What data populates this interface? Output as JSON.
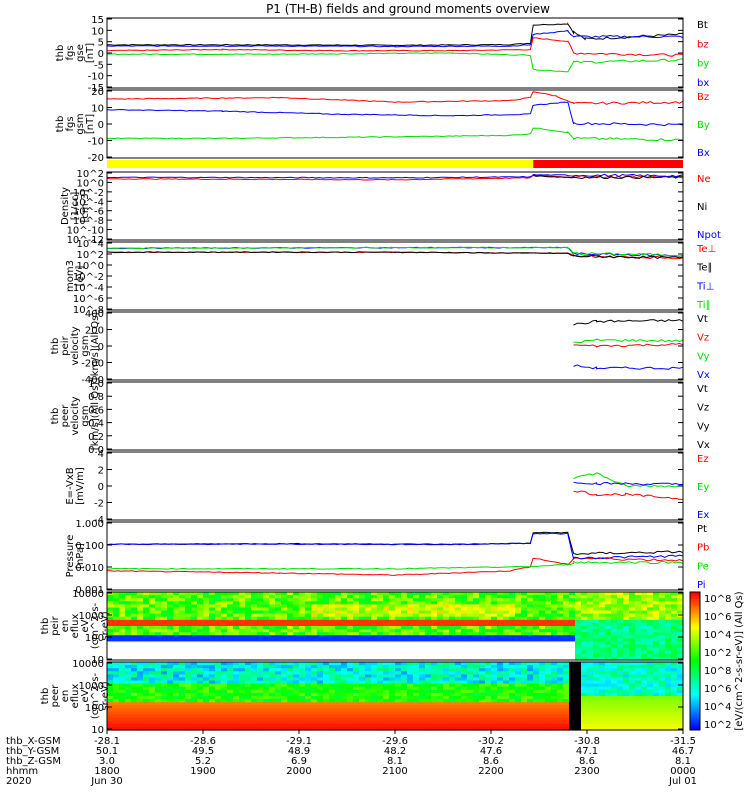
{
  "title": "P1 (TH-B) fields and ground moments overview",
  "colors": {
    "black": "#000000",
    "red": "#ff0000",
    "green": "#00dd00",
    "blue": "#0000ff",
    "yellow": "#ffff00"
  },
  "chart_data": {
    "type": "line",
    "time_axis": {
      "hhmm": [
        "1800",
        "1900",
        "2000",
        "2100",
        "2200",
        "2300",
        "0000"
      ],
      "dates": [
        "2020",
        "Jun 30",
        "Jul 01"
      ],
      "x_gsm": [
        "-28.1",
        "-28.6",
        "-29.1",
        "-29.6",
        "-30.2",
        "-30.8",
        "-31.5"
      ],
      "y_gsm": [
        "50.1",
        "49.5",
        "48.9",
        "48.2",
        "47.6",
        "47.1",
        "46.7"
      ],
      "z_gsm": [
        "3.0",
        "5.2",
        "6.9",
        "8.1",
        "8.6",
        "8.6",
        "8.1"
      ],
      "row_labels": [
        "thb_X-GSM",
        "thb_Y-GSM",
        "thb_Z-GSM",
        "hhmm",
        "2020"
      ]
    },
    "panels": [
      {
        "id": "fgs_gse",
        "ylabel": [
          "thb",
          "fgs",
          "gse",
          "[nT]"
        ],
        "yticks": [
          "15",
          "10",
          "5",
          "0",
          "-5",
          "-10",
          "-15"
        ],
        "ylim": [
          -15,
          15
        ],
        "legend": [
          "Bt",
          "bz",
          "by",
          "bx"
        ],
        "series": [
          {
            "name": "Bt",
            "color": "#000000",
            "points": [
              [
                0,
                3.5
              ],
              [
                0.25,
                3.5
              ],
              [
                0.5,
                3.3
              ],
              [
                0.7,
                3.6
              ],
              [
                0.735,
                4.2
              ],
              [
                0.74,
                12
              ],
              [
                0.8,
                12.5
              ],
              [
                0.81,
                9
              ],
              [
                0.83,
                6
              ],
              [
                1,
                8
              ]
            ]
          },
          {
            "name": "bz",
            "color": "#ff0000",
            "points": [
              [
                0,
                1
              ],
              [
                0.2,
                1.5
              ],
              [
                0.4,
                1
              ],
              [
                0.6,
                1
              ],
              [
                0.735,
                1.5
              ],
              [
                0.74,
                6.5
              ],
              [
                0.8,
                5
              ],
              [
                0.81,
                0
              ],
              [
                1,
                -1
              ]
            ]
          },
          {
            "name": "by",
            "color": "#00dd00",
            "points": [
              [
                0,
                -0.5
              ],
              [
                0.3,
                -0.5
              ],
              [
                0.6,
                0
              ],
              [
                0.735,
                -1
              ],
              [
                0.74,
                -7
              ],
              [
                0.8,
                -8
              ],
              [
                0.81,
                -4
              ],
              [
                1,
                -3
              ]
            ]
          },
          {
            "name": "bx",
            "color": "#0000ff",
            "points": [
              [
                0,
                3
              ],
              [
                0.3,
                3
              ],
              [
                0.5,
                2.8
              ],
              [
                0.7,
                3
              ],
              [
                0.735,
                3.5
              ],
              [
                0.74,
                8
              ],
              [
                0.8,
                9.5
              ],
              [
                0.81,
                7
              ],
              [
                1,
                7
              ]
            ]
          }
        ]
      },
      {
        "id": "fgs_gsm",
        "ylabel": [
          "thb",
          "fgs",
          "gsm",
          "[nT]"
        ],
        "yticks": [
          "20",
          "10",
          "0",
          "-10",
          "-20"
        ],
        "ylim": [
          -25,
          20
        ],
        "legend": [
          "Bz",
          "By",
          "Bx"
        ],
        "series": [
          {
            "name": "Bz",
            "color": "#ff0000",
            "points": [
              [
                0,
                14
              ],
              [
                0.3,
                15
              ],
              [
                0.5,
                12
              ],
              [
                0.7,
                13
              ],
              [
                0.735,
                15
              ],
              [
                0.74,
                19
              ],
              [
                0.78,
                16
              ],
              [
                0.81,
                11
              ],
              [
                1,
                12
              ]
            ]
          },
          {
            "name": "By",
            "color": "#00dd00",
            "points": [
              [
                0,
                -12
              ],
              [
                0.2,
                -12
              ],
              [
                0.5,
                -11
              ],
              [
                0.7,
                -10
              ],
              [
                0.735,
                -9
              ],
              [
                0.74,
                -5
              ],
              [
                0.8,
                -8
              ],
              [
                0.81,
                -12
              ],
              [
                1,
                -13
              ]
            ]
          },
          {
            "name": "Bx",
            "color": "#0000ff",
            "points": [
              [
                0,
                7
              ],
              [
                0.2,
                6
              ],
              [
                0.4,
                4
              ],
              [
                0.6,
                3
              ],
              [
                0.735,
                4
              ],
              [
                0.74,
                10
              ],
              [
                0.8,
                12
              ],
              [
                0.81,
                -2
              ],
              [
                1,
                -3
              ]
            ]
          }
        ]
      },
      {
        "id": "density",
        "ylabel": [
          "Density",
          "[1/cc]",
          "[cm-3]"
        ],
        "yticks": [
          "10^2",
          "10^0",
          "10^-2",
          "10^-4",
          "10^-6",
          "10^-8",
          "10^-10",
          "10^-12"
        ],
        "ylim": [
          -12,
          2
        ],
        "log": true,
        "legend": [
          "Ne",
          "Ni",
          "Npot"
        ],
        "series": [
          {
            "name": "Ne",
            "color": "#ff0000",
            "points": [
              [
                0,
                0.6
              ],
              [
                0.5,
                0.4
              ],
              [
                0.735,
                0.8
              ],
              [
                0.74,
                1.3
              ],
              [
                0.8,
                1.0
              ],
              [
                1,
                1.0
              ]
            ]
          },
          {
            "name": "Ni",
            "color": "#000000",
            "points": [
              [
                0.74,
                1.2
              ],
              [
                0.8,
                0.9
              ],
              [
                1,
                0.9
              ]
            ]
          },
          {
            "name": "Npot",
            "color": "#0000ff",
            "points": [
              [
                0,
                0.9
              ],
              [
                0.5,
                0.8
              ],
              [
                0.735,
                1.0
              ],
              [
                0.74,
                1.4
              ],
              [
                1,
                1.2
              ]
            ]
          }
        ]
      },
      {
        "id": "temp",
        "ylabel": [
          "mom3",
          "[eV]"
        ],
        "yticks": [
          "10^4",
          "10^2",
          "10^0",
          "10^-2",
          "10^-4",
          "10^-6",
          "10^-8"
        ],
        "ylim": [
          -8,
          4
        ],
        "log": true,
        "legend": [
          "Te⊥",
          "Te∥",
          "Ti⊥",
          "Ti∥"
        ],
        "series": [
          {
            "name": "Te⊥",
            "color": "#ff0000",
            "points": [
              [
                0,
                2.2
              ],
              [
                0.5,
                2.2
              ],
              [
                0.8,
                2.0
              ],
              [
                0.81,
                1.5
              ],
              [
                1,
                1.2
              ]
            ]
          },
          {
            "name": "Te∥",
            "color": "#000000",
            "points": [
              [
                0,
                2.2
              ],
              [
                0.5,
                2.2
              ],
              [
                0.8,
                2.0
              ],
              [
                0.81,
                1.5
              ],
              [
                1,
                1.2
              ]
            ]
          },
          {
            "name": "Ti⊥",
            "color": "#0000ff",
            "points": [
              [
                0,
                2.9
              ],
              [
                0.5,
                3.0
              ],
              [
                0.8,
                3.0
              ],
              [
                0.81,
                1.9
              ],
              [
                1,
                1.6
              ]
            ]
          },
          {
            "name": "Ti∥",
            "color": "#00dd00",
            "points": [
              [
                0,
                2.9
              ],
              [
                0.5,
                3.0
              ],
              [
                0.8,
                3.0
              ],
              [
                0.81,
                2.0
              ],
              [
                1,
                1.7
              ]
            ]
          }
        ]
      },
      {
        "id": "vel_gsm",
        "ylabel": [
          "thb",
          "peir",
          "velocity",
          "gsm",
          "[km/s](All Qs)"
        ],
        "yticks": [
          "400",
          "200",
          "0",
          "-200",
          "-400"
        ],
        "ylim": [
          -400,
          400
        ],
        "legend": [
          "Vt",
          "Vz",
          "Vy",
          "Vx"
        ],
        "series": [
          {
            "name": "Vt",
            "color": "#000000",
            "points": [
              [
                0.81,
                250
              ],
              [
                0.85,
                290
              ],
              [
                1,
                300
              ]
            ]
          },
          {
            "name": "Vz",
            "color": "#ff0000",
            "points": [
              [
                0.81,
                10
              ],
              [
                0.85,
                0
              ],
              [
                1,
                20
              ]
            ]
          },
          {
            "name": "Vy",
            "color": "#00dd00",
            "points": [
              [
                0.81,
                40
              ],
              [
                0.85,
                70
              ],
              [
                1,
                60
              ]
            ]
          },
          {
            "name": "Vx",
            "color": "#0000ff",
            "points": [
              [
                0.81,
                -230
              ],
              [
                0.85,
                -260
              ],
              [
                1,
                -260
              ]
            ]
          }
        ]
      },
      {
        "id": "vel_gsm_e",
        "ylabel": [
          "thb",
          "peer",
          "velocity",
          "gsm",
          "[km/s](All Qs)"
        ],
        "yticks": [
          "1.0",
          "0.8",
          "0.6",
          "0.4",
          "0.2",
          "0.0"
        ],
        "ylim": [
          0,
          1
        ],
        "legend": [
          "Vt",
          "Vz",
          "Vy",
          "Vx"
        ],
        "series": []
      },
      {
        "id": "efield",
        "ylabel": [
          "E=-VxB",
          "[mV/m]"
        ],
        "yticks": [
          "4",
          "2",
          "0",
          "-2",
          "-4"
        ],
        "ylim": [
          -4,
          4
        ],
        "legend": [
          "Ez",
          "Ey",
          "Ex"
        ],
        "series": [
          {
            "name": "Ez",
            "color": "#ff0000",
            "points": [
              [
                0.81,
                -0.5
              ],
              [
                0.85,
                -1
              ],
              [
                0.9,
                -1
              ],
              [
                1,
                -1.5
              ]
            ]
          },
          {
            "name": "Ey",
            "color": "#00dd00",
            "points": [
              [
                0.81,
                1
              ],
              [
                0.85,
                1.5
              ],
              [
                0.9,
                0
              ],
              [
                1,
                0
              ]
            ]
          },
          {
            "name": "Ex",
            "color": "#0000ff",
            "points": [
              [
                0.81,
                0.5
              ],
              [
                0.85,
                0.3
              ],
              [
                1,
                0.2
              ]
            ]
          }
        ]
      },
      {
        "id": "pressure",
        "ylabel": [
          "Pressure",
          "[nPa]"
        ],
        "yticks": [
          "1.000",
          "0.100",
          "0.010",
          "0.001"
        ],
        "ylim": [
          -3,
          0.2
        ],
        "log": true,
        "legend": [
          "Pt",
          "Pb",
          "Pe",
          "Pi"
        ],
        "series": [
          {
            "name": "Pt",
            "color": "#000000",
            "points": [
              [
                0,
                -0.85
              ],
              [
                0.3,
                -0.82
              ],
              [
                0.6,
                -0.85
              ],
              [
                0.735,
                -0.8
              ],
              [
                0.74,
                -0.3
              ],
              [
                0.8,
                -0.3
              ],
              [
                0.81,
                -1.3
              ],
              [
                1,
                -1.2
              ]
            ]
          },
          {
            "name": "Pb",
            "color": "#ff0000",
            "points": [
              [
                0,
                -2.1
              ],
              [
                0.3,
                -2.2
              ],
              [
                0.5,
                -2.3
              ],
              [
                0.7,
                -2.1
              ],
              [
                0.735,
                -1.9
              ],
              [
                0.74,
                -1.5
              ],
              [
                0.8,
                -1.8
              ],
              [
                0.81,
                -1.5
              ],
              [
                1,
                -1.6
              ]
            ]
          },
          {
            "name": "Pe",
            "color": "#00dd00",
            "points": [
              [
                0,
                -2.0
              ],
              [
                0.5,
                -2.0
              ],
              [
                0.735,
                -1.9
              ],
              [
                0.8,
                -1.8
              ],
              [
                0.81,
                -1.7
              ],
              [
                1,
                -1.7
              ]
            ]
          },
          {
            "name": "Pi",
            "color": "#0000ff",
            "points": [
              [
                0,
                -0.85
              ],
              [
                0.3,
                -0.84
              ],
              [
                0.6,
                -0.86
              ],
              [
                0.735,
                -0.8
              ],
              [
                0.74,
                -0.35
              ],
              [
                0.8,
                -0.35
              ],
              [
                0.81,
                -1.5
              ],
              [
                1,
                -1.4
              ]
            ]
          }
        ]
      },
      {
        "id": "peir_spec",
        "type": "heatmap",
        "ylabel": [
          "thb",
          "peir",
          "en",
          "eflux",
          "eV",
          "(cm^2-s-",
          "sr-eV)"
        ],
        "yticks": [
          "10000",
          "1000",
          "100",
          "10"
        ],
        "ylim": [
          1,
          4.3
        ],
        "log": true
      },
      {
        "id": "peer_spec",
        "type": "heatmap",
        "ylabel": [
          "thb",
          "peer",
          "en",
          "eflux",
          "eV",
          "(cm^2-s-",
          "sr-eV)"
        ],
        "yticks": [
          "10000",
          "1000",
          "100",
          "10"
        ],
        "ylim": [
          0.7,
          4.3
        ],
        "log": true
      }
    ],
    "colorbar": {
      "ticks": [
        "10^8",
        "10^6",
        "10^4",
        "10^2",
        "10^8",
        "10^6",
        "10^4",
        "10^2"
      ],
      "label": "[eV/(cm^2-s-sr-eV)] (All Qs)"
    },
    "status_bar": {
      "yellow_until": 0.74,
      "red_from": 0.74
    }
  }
}
